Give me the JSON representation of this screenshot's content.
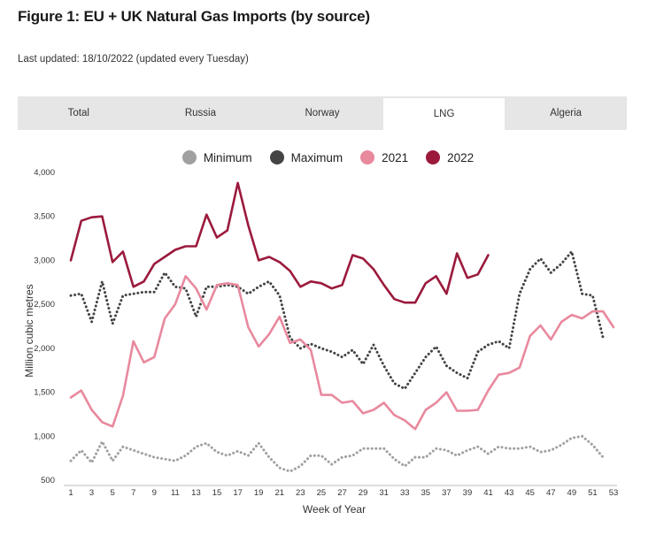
{
  "page": {
    "title": "Figure 1: EU + UK Natural Gas Imports (by source)",
    "last_updated": "Last updated: 18/10/2022 (updated every Tuesday)"
  },
  "tabs": [
    {
      "label": "Total",
      "active": false
    },
    {
      "label": "Russia",
      "active": false
    },
    {
      "label": "Norway",
      "active": false
    },
    {
      "label": "LNG",
      "active": true
    },
    {
      "label": "Algeria",
      "active": false
    }
  ],
  "colors": {
    "minimum": "#a0a0a0",
    "maximum": "#444444",
    "y2021": "#e8899e",
    "y2022": "#9b1a3c"
  },
  "chart_data": {
    "type": "line",
    "xlabel": "Week of Year",
    "ylabel": "Million cubic metres",
    "xlim": [
      1,
      53
    ],
    "ylim": [
      500,
      4000
    ],
    "x_ticks": [
      1,
      3,
      5,
      7,
      9,
      11,
      13,
      15,
      17,
      19,
      21,
      23,
      25,
      27,
      29,
      31,
      33,
      35,
      37,
      39,
      41,
      43,
      45,
      47,
      49,
      51,
      53
    ],
    "y_ticks": [
      500,
      1000,
      1500,
      2000,
      2500,
      3000,
      3500,
      4000
    ],
    "y_tick_labels": [
      "500",
      "1,000",
      "1,500",
      "2,000",
      "2,500",
      "3,000",
      "3,500",
      "4,000"
    ],
    "legend_position": "top-center",
    "series": [
      {
        "name": "Minimum",
        "style": "dotted",
        "color_key": "minimum",
        "x": [
          1,
          2,
          3,
          4,
          5,
          6,
          7,
          8,
          9,
          10,
          11,
          12,
          13,
          14,
          15,
          16,
          17,
          18,
          19,
          20,
          21,
          22,
          23,
          24,
          25,
          26,
          27,
          28,
          29,
          30,
          31,
          32,
          33,
          34,
          35,
          36,
          37,
          38,
          39,
          40,
          41,
          42,
          43,
          44,
          45,
          46,
          47,
          48,
          49,
          50,
          51,
          52
        ],
        "values": [
          720,
          840,
          700,
          940,
          720,
          880,
          840,
          800,
          760,
          740,
          720,
          780,
          880,
          920,
          820,
          780,
          830,
          780,
          920,
          760,
          640,
          600,
          660,
          780,
          780,
          680,
          760,
          780,
          860,
          860,
          860,
          740,
          660,
          760,
          760,
          860,
          840,
          780,
          840,
          880,
          800,
          880,
          860,
          860,
          880,
          820,
          840,
          900,
          980,
          1000,
          900,
          760
        ]
      },
      {
        "name": "Maximum",
        "style": "dotted",
        "color_key": "maximum",
        "x": [
          1,
          2,
          3,
          4,
          5,
          6,
          7,
          8,
          9,
          10,
          11,
          12,
          13,
          14,
          15,
          16,
          17,
          18,
          19,
          20,
          21,
          22,
          23,
          24,
          25,
          26,
          27,
          28,
          29,
          30,
          31,
          32,
          33,
          34,
          35,
          36,
          37,
          38,
          39,
          40,
          41,
          42,
          43,
          44,
          45,
          46,
          47,
          48,
          49,
          50,
          51,
          52
        ],
        "values": [
          2600,
          2620,
          2300,
          2760,
          2280,
          2600,
          2620,
          2640,
          2640,
          2860,
          2700,
          2680,
          2360,
          2700,
          2700,
          2720,
          2700,
          2620,
          2700,
          2760,
          2600,
          2120,
          2000,
          2050,
          2000,
          1960,
          1900,
          1980,
          1820,
          2040,
          1800,
          1600,
          1540,
          1720,
          1900,
          2020,
          1800,
          1720,
          1660,
          1960,
          2040,
          2080,
          2000,
          2620,
          2900,
          3020,
          2860,
          2960,
          3100,
          2620,
          2600,
          2120
        ]
      },
      {
        "name": "2021",
        "style": "solid",
        "color_key": "y2021",
        "x": [
          1,
          2,
          3,
          4,
          5,
          6,
          7,
          8,
          9,
          10,
          11,
          12,
          13,
          14,
          15,
          16,
          17,
          18,
          19,
          20,
          21,
          22,
          23,
          24,
          25,
          26,
          27,
          28,
          29,
          30,
          31,
          32,
          33,
          34,
          35,
          36,
          37,
          38,
          39,
          40,
          41,
          42,
          43,
          44,
          45,
          46,
          47,
          48,
          49,
          50,
          51,
          52,
          53
        ],
        "values": [
          1440,
          1520,
          1300,
          1160,
          1110,
          1460,
          2080,
          1840,
          1900,
          2340,
          2500,
          2820,
          2680,
          2440,
          2720,
          2740,
          2720,
          2240,
          2020,
          2160,
          2360,
          2060,
          2100,
          1980,
          1470,
          1470,
          1380,
          1400,
          1260,
          1300,
          1380,
          1240,
          1180,
          1080,
          1300,
          1380,
          1500,
          1290,
          1290,
          1300,
          1520,
          1700,
          1720,
          1780,
          2140,
          2260,
          2100,
          2300,
          2380,
          2340,
          2420,
          2420,
          2240
        ]
      },
      {
        "name": "2022",
        "style": "solid",
        "color_key": "y2022",
        "x": [
          1,
          2,
          3,
          4,
          5,
          6,
          7,
          8,
          9,
          10,
          11,
          12,
          13,
          14,
          15,
          16,
          17,
          18,
          19,
          20,
          21,
          22,
          23,
          24,
          25,
          26,
          27,
          28,
          29,
          30,
          31,
          32,
          33,
          34,
          35,
          36,
          37,
          38,
          39,
          40,
          41
        ],
        "values": [
          3000,
          3450,
          3490,
          3500,
          2980,
          3100,
          2700,
          2760,
          2960,
          3040,
          3120,
          3160,
          3160,
          3520,
          3260,
          3340,
          3880,
          3400,
          3000,
          3040,
          2980,
          2880,
          2700,
          2760,
          2740,
          2680,
          2720,
          3060,
          3020,
          2900,
          2720,
          2560,
          2520,
          2520,
          2740,
          2820,
          2620,
          3080,
          2800,
          2840,
          3060
        ]
      }
    ]
  }
}
